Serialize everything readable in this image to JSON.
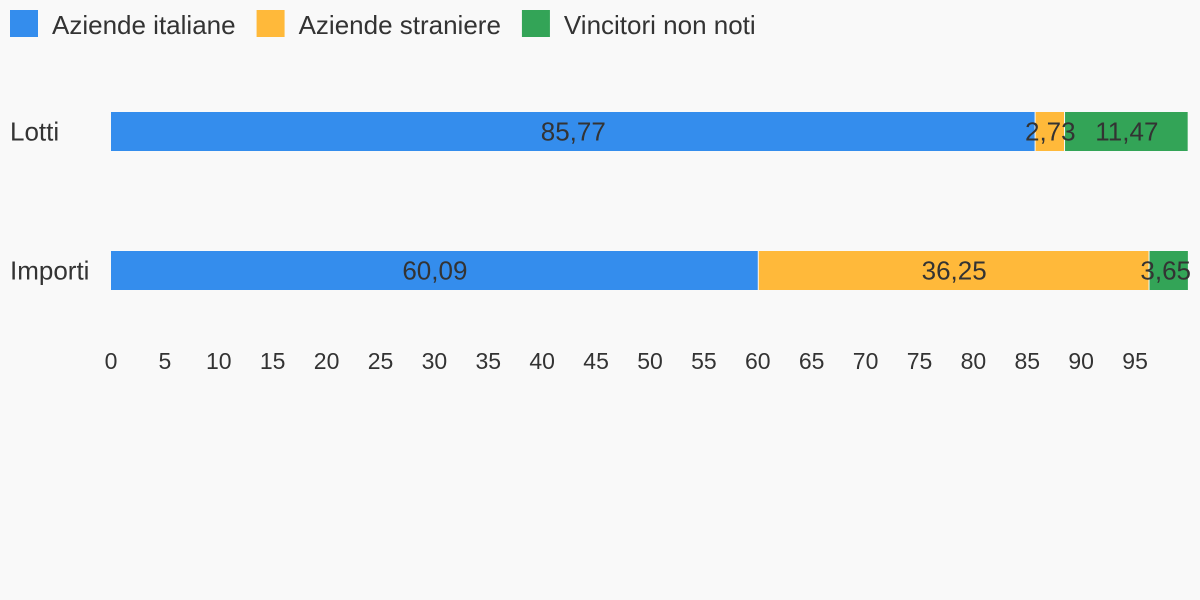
{
  "chart_data": {
    "type": "bar",
    "orientation": "horizontal",
    "stacked": true,
    "categories": [
      "Lotti",
      "Importi"
    ],
    "series": [
      {
        "name": "Aziende italiane",
        "color": "#348ded",
        "values": [
          85.77,
          60.09
        ],
        "value_labels": [
          "85,77",
          "60,09"
        ]
      },
      {
        "name": "Aziende straniere",
        "color": "#ffb93a",
        "values": [
          2.73,
          36.25
        ],
        "value_labels": [
          "2,73",
          "36,25"
        ]
      },
      {
        "name": "Vincitori non noti",
        "color": "#33a457",
        "values": [
          11.47,
          3.65
        ],
        "value_labels": [
          "11,47",
          "3,65"
        ]
      }
    ],
    "xlim": [
      0,
      100
    ],
    "xticks": [
      0,
      5,
      10,
      15,
      20,
      25,
      30,
      35,
      40,
      45,
      50,
      55,
      60,
      65,
      70,
      75,
      80,
      85,
      90,
      95
    ],
    "legend": "top-left",
    "grid": false
  }
}
